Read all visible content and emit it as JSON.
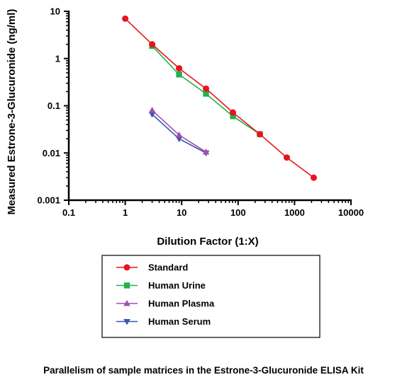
{
  "caption": "Parallelism of sample matrices in the Estrone-3-Glucuronide ELISA Kit",
  "chart_data": {
    "type": "line",
    "title": "",
    "xlabel": "Dilution Factor (1:X)",
    "ylabel": "Measured Estrone-3-Glucuronide (ng/ml)",
    "xscale": "log",
    "yscale": "log",
    "xlim": [
      0.1,
      10000
    ],
    "ylim": [
      0.001,
      10
    ],
    "xticks": [
      "0.1",
      "1",
      "10",
      "100",
      "1000",
      "10000"
    ],
    "yticks": [
      "0.001",
      "0.01",
      "0.1",
      "1",
      "10"
    ],
    "grid": false,
    "legend_position": "bottom",
    "series": [
      {
        "name": "Standard",
        "color": "#e8141c",
        "marker": "circle",
        "x": [
          1,
          3,
          9,
          27,
          81,
          243,
          729,
          2187
        ],
        "y": [
          7.0,
          2.0,
          0.62,
          0.23,
          0.072,
          0.025,
          0.008,
          0.003
        ]
      },
      {
        "name": "Human Urine",
        "color": "#22b14c",
        "marker": "square",
        "x": [
          3,
          9,
          27,
          81,
          243
        ],
        "y": [
          1.85,
          0.46,
          0.18,
          0.06,
          0.025
        ]
      },
      {
        "name": "Human Plasma",
        "color": "#a24fb4",
        "marker": "triangle-up",
        "x": [
          3,
          9,
          27
        ],
        "y": [
          0.08,
          0.024,
          0.0105
        ]
      },
      {
        "name": "Human Serum",
        "color": "#3b55b0",
        "marker": "triangle-down",
        "x": [
          3,
          9,
          27
        ],
        "y": [
          0.066,
          0.02,
          0.01
        ]
      }
    ]
  }
}
